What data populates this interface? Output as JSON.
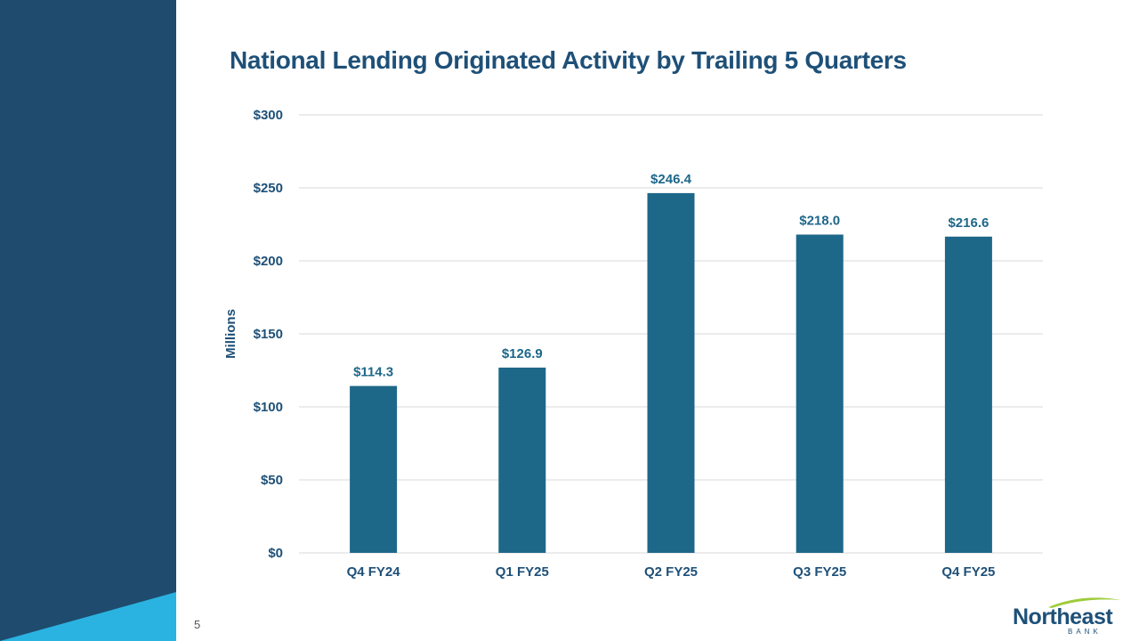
{
  "page": {
    "number": "5"
  },
  "logo": {
    "name": "Northeast",
    "sub": "BANK"
  },
  "colors": {
    "sidebar": "#1f4b6e",
    "accent": "#2ab3e0",
    "bar": "#1d6789",
    "title": "#1e5078",
    "grid": "#d9d9d9",
    "logo_swoosh": "#9ecb3c"
  },
  "chart_data": {
    "type": "bar",
    "title": "National Lending Originated Activity by Trailing 5 Quarters",
    "xlabel": "",
    "ylabel": "Millions",
    "categories": [
      "Q4 FY24",
      "Q1 FY25",
      "Q2 FY25",
      "Q3 FY25",
      "Q4 FY25"
    ],
    "values": [
      114.3,
      126.9,
      246.4,
      218.0,
      216.6
    ],
    "data_labels": [
      "$114.3",
      "$126.9",
      "$246.4",
      "$218.0",
      "$216.6"
    ],
    "ylim": [
      0,
      300
    ],
    "yticks": [
      0,
      50,
      100,
      150,
      200,
      250,
      300
    ],
    "ytick_labels": [
      "$0",
      "$50",
      "$100",
      "$150",
      "$200",
      "$250",
      "$300"
    ],
    "grid": true,
    "legend": "none"
  }
}
